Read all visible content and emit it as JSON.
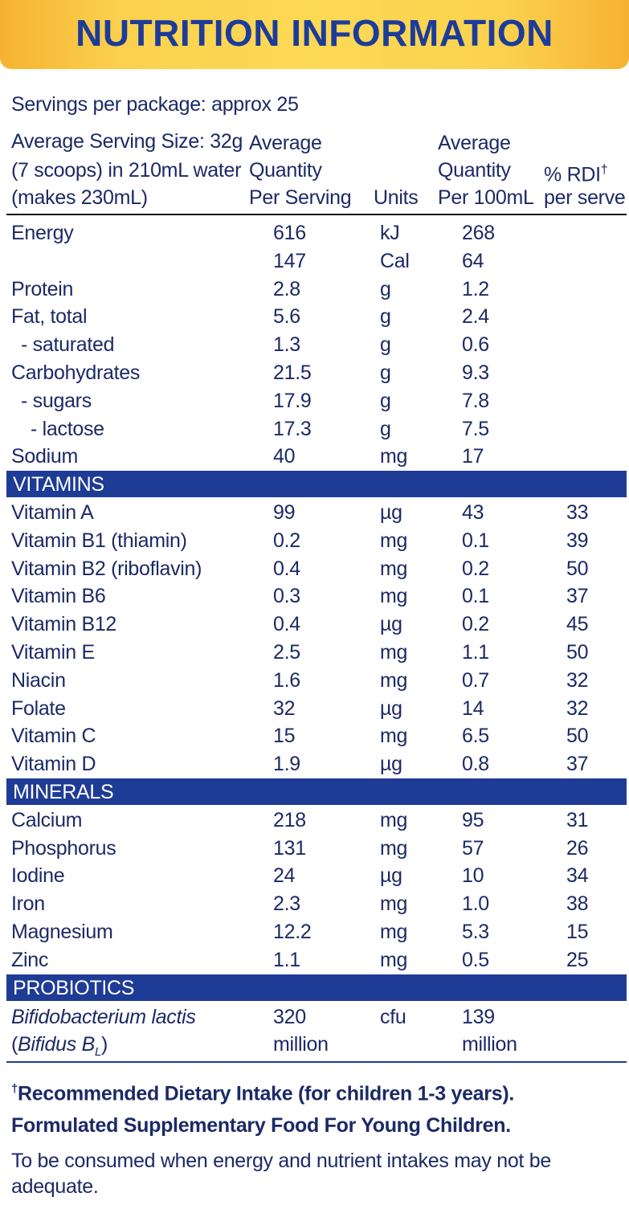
{
  "header": {
    "title": "NUTRITION INFORMATION"
  },
  "intro": [
    "Servings per package: approx 25",
    "Average Serving Size: 32g",
    "(7 scoops) in 210mL water",
    "(makes 230mL)"
  ],
  "columns": {
    "per_serving": [
      "Average",
      "Quantity",
      "Per Serving"
    ],
    "units": "Units",
    "per_100ml": [
      "Average",
      "Quantity",
      "Per 100mL"
    ],
    "rdi": {
      "label": "% RDI",
      "mark": "†",
      "sub": "per serve"
    }
  },
  "nutrients": [
    {
      "name": "Energy",
      "serving": "616",
      "unit": "kJ",
      "per_100ml": "268"
    },
    {
      "serving": "147",
      "unit": "Cal",
      "per_100ml": "64"
    },
    {
      "name": "Protein",
      "serving": "2.8",
      "unit": "g",
      "per_100ml": "1.2"
    },
    {
      "name": "Fat, total",
      "serving": "5.6",
      "unit": "g",
      "per_100ml": "2.4",
      "sub": [
        {
          "name": "- saturated",
          "serving": "1.3",
          "unit": "g",
          "per_100ml": "0.6"
        }
      ]
    },
    {
      "name": "Carbohydrates",
      "serving": "21.5",
      "unit": "g",
      "per_100ml": "9.3",
      "sub": [
        {
          "name": "- sugars",
          "serving": "17.9",
          "unit": "g",
          "per_100ml": "7.8",
          "sub": [
            {
              "name": "- lactose",
              "serving": "17.3",
              "unit": "g",
              "per_100ml": "7.5"
            }
          ]
        }
      ]
    },
    {
      "name": "Sodium",
      "serving": "40",
      "unit": "mg",
      "per_100ml": "17"
    }
  ],
  "sections": [
    {
      "heading": "VITAMINS",
      "rows": [
        {
          "name": "Vitamin A",
          "serving": "99",
          "unit": "µg",
          "per_100ml": "43",
          "rdi": "33"
        },
        {
          "name": "Vitamin B1 (thiamin)",
          "serving": "0.2",
          "unit": "mg",
          "per_100ml": "0.1",
          "rdi": "39"
        },
        {
          "name": "Vitamin B2 (riboflavin)",
          "serving": "0.4",
          "unit": "mg",
          "per_100ml": "0.2",
          "rdi": "50"
        },
        {
          "name": "Vitamin B6",
          "serving": "0.3",
          "unit": "mg",
          "per_100ml": "0.1",
          "rdi": "37"
        },
        {
          "name": "Vitamin B12",
          "serving": "0.4",
          "unit": "µg",
          "per_100ml": "0.2",
          "rdi": "45"
        },
        {
          "name": "Vitamin E",
          "serving": "2.5",
          "unit": "mg",
          "per_100ml": "1.1",
          "rdi": "50"
        },
        {
          "name": "Niacin",
          "serving": "1.6",
          "unit": "mg",
          "per_100ml": "0.7",
          "rdi": "32"
        },
        {
          "name": "Folate",
          "serving": "32",
          "unit": "µg",
          "per_100ml": "14",
          "rdi": "32"
        },
        {
          "name": "Vitamin C",
          "serving": "15",
          "unit": "mg",
          "per_100ml": "6.5",
          "rdi": "50"
        },
        {
          "name": "Vitamin D",
          "serving": "1.9",
          "unit": "µg",
          "per_100ml": "0.8",
          "rdi": "37"
        }
      ]
    },
    {
      "heading": "MINERALS",
      "rows": [
        {
          "name": "Calcium",
          "serving": "218",
          "unit": "mg",
          "per_100ml": "95",
          "rdi": "31"
        },
        {
          "name": "Phosphorus",
          "serving": "131",
          "unit": "mg",
          "per_100ml": "57",
          "rdi": "26"
        },
        {
          "name": "Iodine",
          "serving": "24",
          "unit": "µg",
          "per_100ml": "10",
          "rdi": "34"
        },
        {
          "name": "Iron",
          "serving": "2.3",
          "unit": "mg",
          "per_100ml": "1.0",
          "rdi": "38"
        },
        {
          "name": "Magnesium",
          "serving": "12.2",
          "unit": "mg",
          "per_100ml": "5.3",
          "rdi": "15"
        },
        {
          "name": "Zinc",
          "serving": "1.1",
          "unit": "mg",
          "per_100ml": "0.5",
          "rdi": "25"
        }
      ]
    }
  ],
  "probiotics": {
    "heading": "PROBIOTICS",
    "name": "Bifidobacterium lactis",
    "alias": {
      "open": "(",
      "name": "Bifidus B",
      "subscript": "L",
      "close": ")"
    },
    "serving": [
      "320",
      "million"
    ],
    "unit": "cfu",
    "per_100ml": [
      "139",
      "million"
    ]
  },
  "footer": {
    "footnote": {
      "mark": "†",
      "text": "Recommended Dietary Intake (for children 1-3 years)."
    },
    "statement": "Formulated Supplementary Food For Young Children.",
    "advice": "To be consumed when energy and nutrient intakes may not be adequate."
  }
}
